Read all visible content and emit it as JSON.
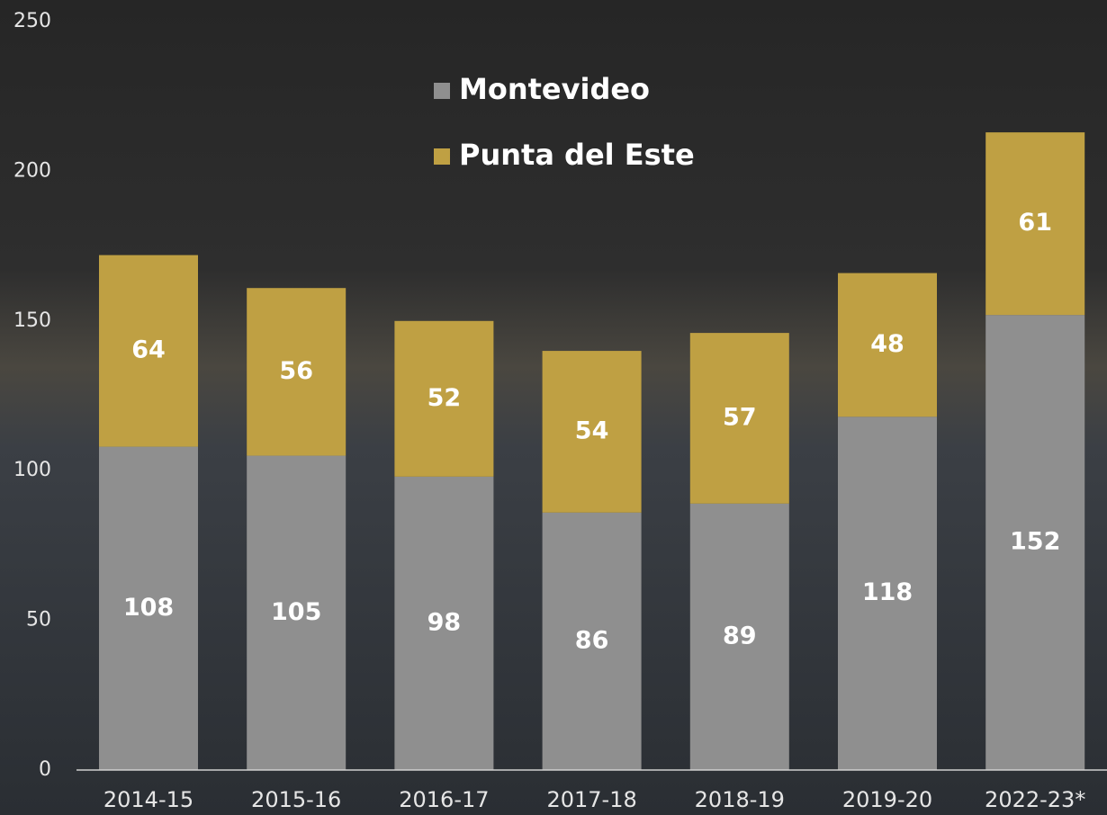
{
  "chart_data": {
    "type": "stacked-bar",
    "categories": [
      "2014-15",
      "2015-16",
      "2016-17",
      "2017-18",
      "2018-19",
      "2019-20",
      "2022-23*"
    ],
    "series": [
      {
        "name": "Montevideo",
        "color": "#8f8f8f",
        "values": [
          108,
          105,
          98,
          86,
          89,
          118,
          152
        ]
      },
      {
        "name": "Punta del Este",
        "color": "#bfa043",
        "values": [
          64,
          56,
          52,
          54,
          57,
          48,
          61
        ]
      }
    ],
    "ylim": [
      0,
      250
    ],
    "yticks": [
      0,
      50,
      100,
      150,
      200,
      250
    ],
    "grid": false
  }
}
